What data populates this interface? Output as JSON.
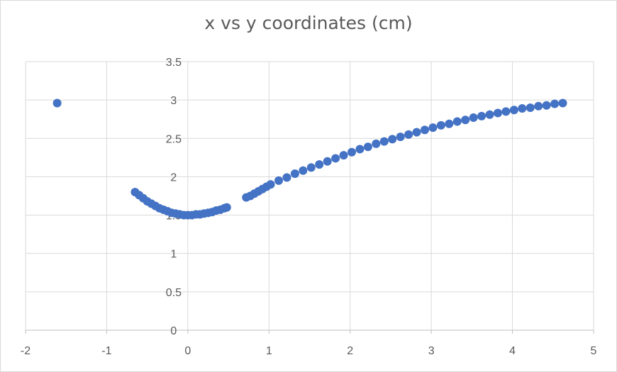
{
  "chart_data": {
    "type": "scatter",
    "title": "x vs y coordinates (cm)",
    "xlabel": "",
    "ylabel": "",
    "xlim": [
      -2,
      5
    ],
    "ylim": [
      0,
      3.5
    ],
    "grid": true,
    "marker_color": "#4472c4",
    "gridline_color": "#d9d9d9",
    "axis_color": "#bfbfbf",
    "x_ticks": [
      "-2",
      "-1",
      "0",
      "1",
      "2",
      "3",
      "4",
      "5"
    ],
    "y_ticks": [
      "0",
      "0.5",
      "1",
      "1.5",
      "2",
      "2.5",
      "3",
      "3.5"
    ],
    "series": [
      {
        "points": [
          [
            -1.61,
            2.96
          ],
          [
            -0.65,
            1.8
          ],
          [
            -0.6,
            1.76
          ],
          [
            -0.55,
            1.72
          ],
          [
            -0.5,
            1.68
          ],
          [
            -0.45,
            1.65
          ],
          [
            -0.4,
            1.62
          ],
          [
            -0.35,
            1.59
          ],
          [
            -0.3,
            1.57
          ],
          [
            -0.25,
            1.55
          ],
          [
            -0.2,
            1.53
          ],
          [
            -0.15,
            1.52
          ],
          [
            -0.1,
            1.51
          ],
          [
            -0.05,
            1.5
          ],
          [
            0.0,
            1.5
          ],
          [
            0.05,
            1.5
          ],
          [
            0.1,
            1.51
          ],
          [
            0.15,
            1.51
          ],
          [
            0.2,
            1.52
          ],
          [
            0.25,
            1.53
          ],
          [
            0.3,
            1.54
          ],
          [
            0.35,
            1.56
          ],
          [
            0.4,
            1.57
          ],
          [
            0.45,
            1.59
          ],
          [
            0.48,
            1.6
          ],
          [
            0.72,
            1.73
          ],
          [
            0.77,
            1.75
          ],
          [
            0.82,
            1.78
          ],
          [
            0.87,
            1.81
          ],
          [
            0.92,
            1.84
          ],
          [
            0.97,
            1.87
          ],
          [
            1.02,
            1.9
          ],
          [
            1.12,
            1.95
          ],
          [
            1.22,
            1.99
          ],
          [
            1.32,
            2.04
          ],
          [
            1.42,
            2.08
          ],
          [
            1.52,
            2.12
          ],
          [
            1.62,
            2.16
          ],
          [
            1.72,
            2.2
          ],
          [
            1.82,
            2.24
          ],
          [
            1.92,
            2.28
          ],
          [
            2.02,
            2.32
          ],
          [
            2.12,
            2.36
          ],
          [
            2.22,
            2.39
          ],
          [
            2.32,
            2.43
          ],
          [
            2.42,
            2.46
          ],
          [
            2.52,
            2.49
          ],
          [
            2.62,
            2.52
          ],
          [
            2.72,
            2.55
          ],
          [
            2.82,
            2.58
          ],
          [
            2.92,
            2.61
          ],
          [
            3.02,
            2.64
          ],
          [
            3.12,
            2.67
          ],
          [
            3.22,
            2.69
          ],
          [
            3.32,
            2.72
          ],
          [
            3.42,
            2.74
          ],
          [
            3.52,
            2.77
          ],
          [
            3.62,
            2.79
          ],
          [
            3.72,
            2.81
          ],
          [
            3.82,
            2.83
          ],
          [
            3.92,
            2.85
          ],
          [
            4.02,
            2.87
          ],
          [
            4.12,
            2.89
          ],
          [
            4.22,
            2.9
          ],
          [
            4.32,
            2.92
          ],
          [
            4.42,
            2.93
          ],
          [
            4.52,
            2.95
          ],
          [
            4.62,
            2.96
          ]
        ]
      }
    ]
  }
}
